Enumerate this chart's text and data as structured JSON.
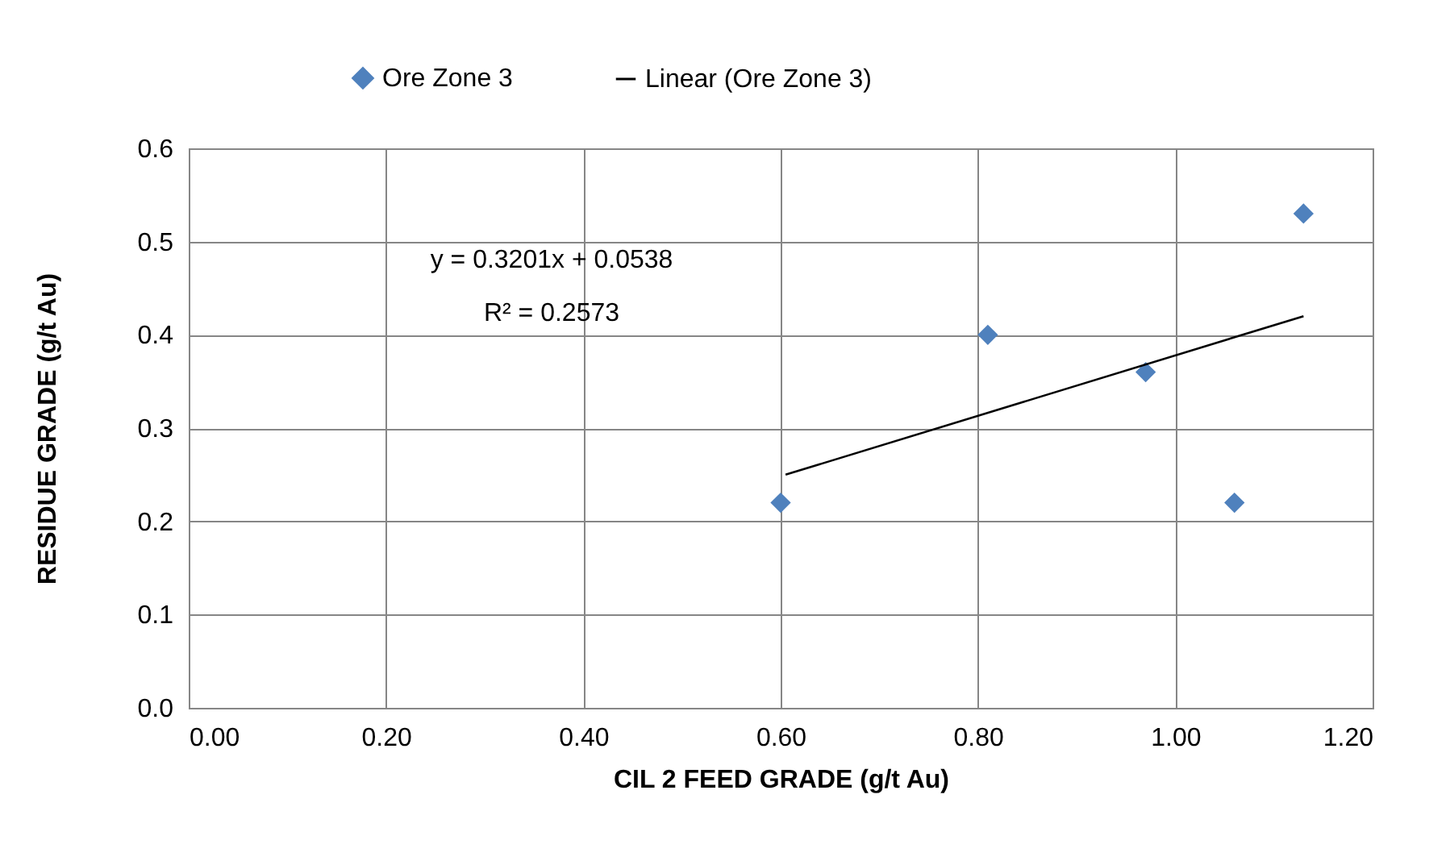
{
  "chart_data": {
    "type": "scatter",
    "xlabel": "CIL 2 FEED GRADE (g/t Au)",
    "ylabel": "RESIDUE GRADE (g/t Au)",
    "xlim": [
      0,
      1.2
    ],
    "xticks": [
      {
        "value": 0,
        "label": "0.00"
      },
      {
        "value": 0.2,
        "label": "0.20"
      },
      {
        "value": 0.4,
        "label": "0.40"
      },
      {
        "value": 0.6,
        "label": "0.60"
      },
      {
        "value": 0.8,
        "label": "0.80"
      },
      {
        "value": 1,
        "label": "1.00"
      },
      {
        "value": 1.2,
        "label": "1.20"
      }
    ],
    "ylim": [
      0,
      0.6
    ],
    "yticks": [
      {
        "value": 0,
        "label": "0.0"
      },
      0.1,
      0.2,
      0.3,
      0.4,
      0.5,
      0.6
    ],
    "grid": true,
    "legend": "top",
    "series": [
      {
        "name": "Ore Zone 3",
        "color": "#4f81bd",
        "marker": "diamond",
        "x": [
          0.6,
          0.81,
          0.97,
          1.06,
          1.13
        ],
        "values": [
          0.22,
          0.4,
          0.36,
          0.22,
          0.53
        ]
      },
      {
        "name": "Linear (Ore Zone 3)",
        "type": "line",
        "color": "#000000",
        "x": [
          0.605,
          1.13
        ],
        "values": [
          0.25,
          0.42
        ]
      }
    ],
    "annotations": [
      "y = 0.3201x + 0.0538",
      "R² = 0.2573"
    ]
  }
}
